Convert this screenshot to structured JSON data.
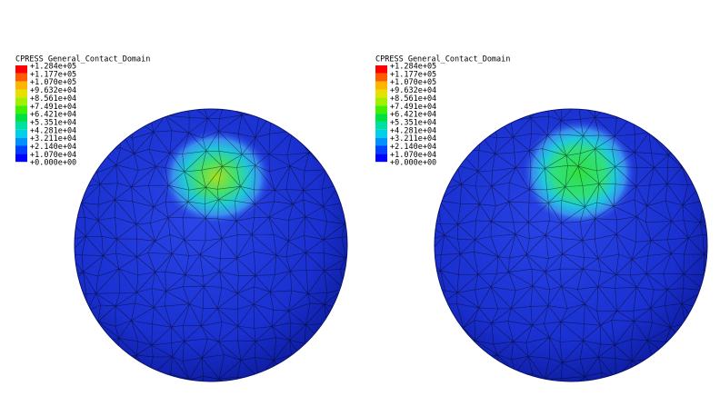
{
  "panels": [
    {
      "legend_title": "CPRESS General_Contact_Domain",
      "legend_labels": [
        "+1.284e+05",
        "+1.177e+05",
        "+1.070e+05",
        "+9.632e+04",
        "+8.561e+04",
        "+7.491e+04",
        "+6.421e+04",
        "+5.351e+04",
        "+4.281e+04",
        "+3.211e+04",
        "+2.140e+04",
        "+1.070e+04",
        "+0.000e+00"
      ]
    },
    {
      "legend_title": "CPRESS General_Contact_Domain",
      "legend_labels": [
        "+1.284e+05",
        "+1.177e+05",
        "+1.070e+05",
        "+9.632e+04",
        "+8.561e+04",
        "+7.491e+04",
        "+6.421e+04",
        "+5.351e+04",
        "+4.281e+04",
        "+3.211e+04",
        "+2.140e+04",
        "+1.070e+04",
        "+0.000e+00"
      ]
    }
  ]
}
